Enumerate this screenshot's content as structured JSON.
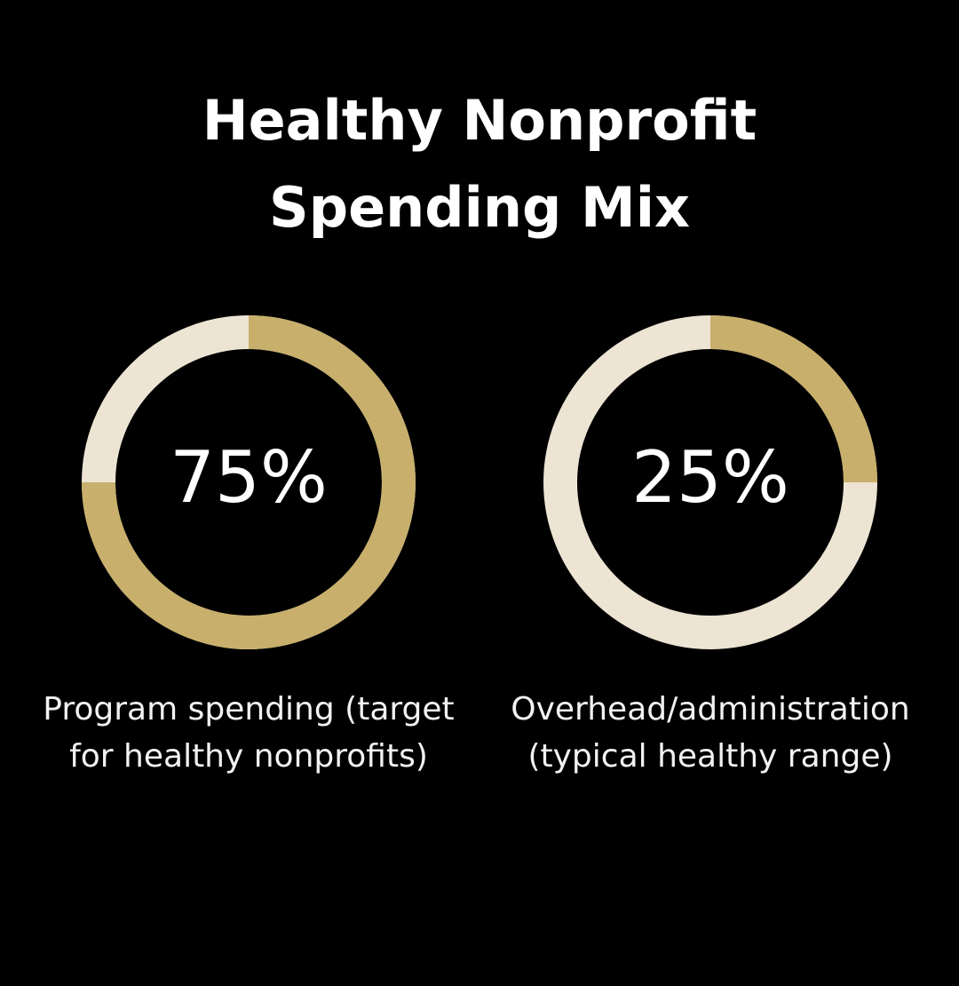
{
  "title": [
    "Healthy Nonprofit",
    "Spending Mix"
  ],
  "chart_data": [
    {
      "type": "donut",
      "values": [
        75
      ],
      "value_labels": [
        "75%"
      ],
      "ylim": [
        0,
        100
      ],
      "caption": [
        "Program spending (target",
        "for healthy nonprofits)"
      ],
      "color": "#c8af6c",
      "track_color": "#ede4d4"
    },
    {
      "type": "donut",
      "values": [
        25
      ],
      "value_labels": [
        "25%"
      ],
      "ylim": [
        0,
        100
      ],
      "caption": [
        "Overhead/administration",
        "(typical healthy range)"
      ],
      "color": "#c8af6c",
      "track_color": "#ede4d4"
    }
  ]
}
